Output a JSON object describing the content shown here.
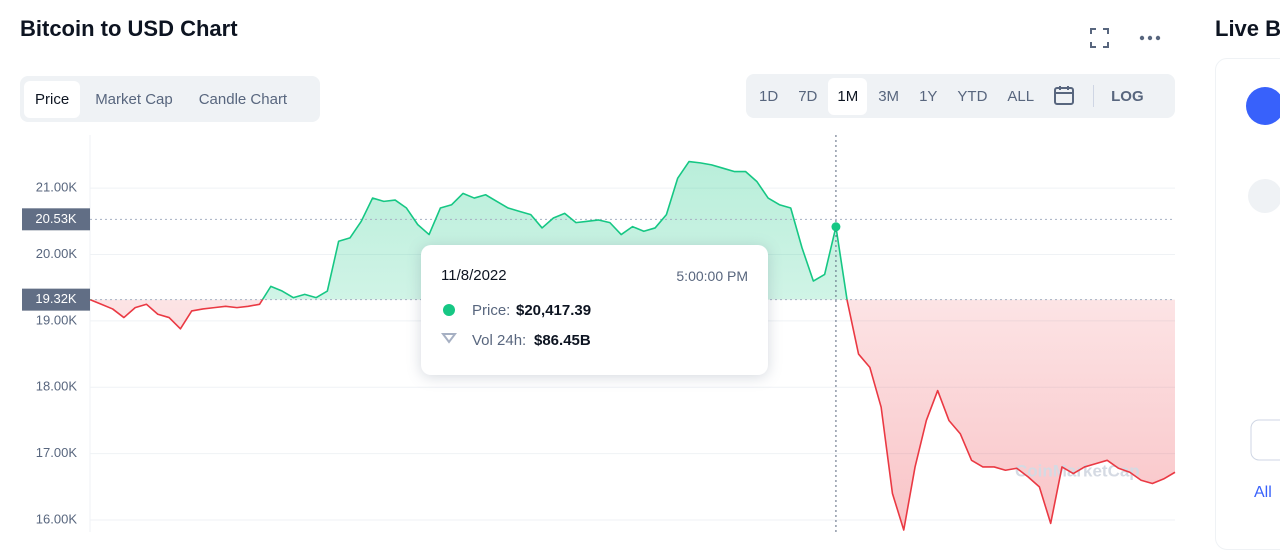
{
  "header": {
    "title": "Bitcoin to USD Chart"
  },
  "tabs": [
    "Price",
    "Market Cap",
    "Candle Chart"
  ],
  "ranges": [
    "1D",
    "7D",
    "1M",
    "3M",
    "1Y",
    "YTD",
    "ALL"
  ],
  "log_button": "LOG",
  "side_panel": {
    "title": "Live B",
    "link": "All"
  },
  "chart_data": {
    "type": "line",
    "values": [
      19320,
      19250,
      19180,
      19050,
      19200,
      19250,
      19100,
      19050,
      18880,
      19150,
      19180,
      19200,
      19220,
      19200,
      19220,
      19250,
      19520,
      19450,
      19350,
      19400,
      19350,
      19450,
      20200,
      20250,
      20500,
      20850,
      20800,
      20820,
      20700,
      20450,
      20300,
      20700,
      20750,
      20920,
      20850,
      20900,
      20800,
      20700,
      20650,
      20600,
      20400,
      20550,
      20620,
      20480,
      20500,
      20520,
      20480,
      20300,
      20420,
      20350,
      20400,
      20600,
      21150,
      21400,
      21380,
      21350,
      21300,
      21250,
      21250,
      21100,
      20850,
      20750,
      20700,
      20100,
      19600,
      19700,
      20417.39,
      19300,
      18500,
      18300,
      17700,
      16400,
      15850,
      16800,
      17500,
      17950,
      17500,
      17300,
      16900,
      16800,
      16800,
      16750,
      16780,
      16650,
      16500,
      15950,
      16800,
      16700,
      16800,
      16850,
      16900,
      16780,
      16720,
      16600,
      16550,
      16620,
      16720
    ],
    "colors": {
      "up": "#16c784",
      "down": "#ea3943"
    },
    "ylim": [
      15820,
      21800
    ],
    "yticks": [
      {
        "value": 16000,
        "label": "16.00K"
      },
      {
        "value": 17000,
        "label": "17.00K"
      },
      {
        "value": 18000,
        "label": "18.00K"
      },
      {
        "value": 19000,
        "label": "19.00K"
      },
      {
        "value": 20000,
        "label": "20.00K"
      },
      {
        "value": 21000,
        "label": "21.00K"
      }
    ],
    "grid": true,
    "reference_lines": [
      {
        "value": 20530,
        "label": "20.53K"
      },
      {
        "value": 19320,
        "label": "19.32K"
      }
    ],
    "watermark": "CoinMarketCap",
    "tooltip": {
      "date": "11/8/2022",
      "time": "5:00:00 PM",
      "price_label": "Price:",
      "price": {
        "value": 20417.39,
        "label": "$20,417.39"
      },
      "volume_label": "Vol 24h:",
      "volume": "$86.45B"
    }
  }
}
